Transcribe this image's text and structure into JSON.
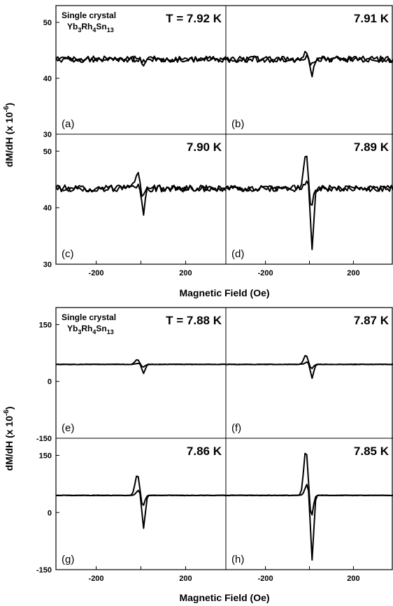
{
  "chart_data": [
    {
      "type": "line",
      "xlabel": "Magnetic Field (Oe)",
      "ylabel": "dM/dH (x 10",
      "ylabel_exponent": "-6",
      "ylabel_suffix": ")",
      "sample_label": {
        "line1": "Single crystal",
        "formula": [
          "Yb",
          "3",
          "Rh",
          "4",
          "Sn",
          "13"
        ]
      },
      "xlim": [
        -380,
        380
      ],
      "ylim": [
        30,
        53
      ],
      "xticks": [
        -200,
        0,
        200
      ],
      "xtick_labels": [
        "-200",
        "0",
        "200"
      ],
      "yticks": [
        30,
        40,
        50
      ],
      "ytick_labels": [
        "30",
        "40",
        "50"
      ],
      "grid": false,
      "panels": [
        {
          "letter": "(a)",
          "temperature": "T = 7.92 K",
          "baseline": 43.4,
          "noise": 0.55,
          "peak_pos": 0.4,
          "peak_neg": -0.8
        },
        {
          "letter": "(b)",
          "temperature": "7.91 K",
          "baseline": 43.4,
          "noise": 0.55,
          "peak_pos": 1.8,
          "peak_neg": -2.8
        },
        {
          "letter": "(c)",
          "temperature": "7.90 K",
          "baseline": 43.4,
          "noise": 0.6,
          "peak_pos": 2.8,
          "peak_neg": -4.4
        },
        {
          "letter": "(d)",
          "temperature": "7.89 K",
          "baseline": 43.4,
          "noise": 0.55,
          "peak_pos": 6.4,
          "peak_neg": -10.6
        }
      ]
    },
    {
      "type": "line",
      "xlabel": "Magnetic Field (Oe)",
      "ylabel": "dM/dH (x 10",
      "ylabel_exponent": "-6",
      "ylabel_suffix": ")",
      "sample_label": {
        "line1": "Single crystal",
        "formula": [
          "Yb",
          "3",
          "Rh",
          "4",
          "Sn",
          "13"
        ]
      },
      "xlim": [
        -380,
        380
      ],
      "ylim": [
        -150,
        195
      ],
      "xticks": [
        -200,
        0,
        200
      ],
      "xtick_labels": [
        "-200",
        "0",
        "200"
      ],
      "yticks": [
        -150,
        0,
        150
      ],
      "ytick_labels": [
        "-150",
        "0",
        "150"
      ],
      "grid": false,
      "panels": [
        {
          "letter": "(e)",
          "temperature": "T = 7.88 K",
          "baseline": 45,
          "noise": 0.6,
          "peak_pos": 13,
          "peak_neg": -24
        },
        {
          "letter": "(f)",
          "temperature": "7.87 K",
          "baseline": 45,
          "noise": 0.6,
          "peak_pos": 25,
          "peak_neg": -37
        },
        {
          "letter": "(g)",
          "temperature": "7.86 K",
          "baseline": 45,
          "noise": 0.6,
          "peak_pos": 55,
          "peak_neg": -87
        },
        {
          "letter": "(h)",
          "temperature": "7.85 K",
          "baseline": 45,
          "noise": 0.6,
          "peak_pos": 120,
          "peak_neg": -172
        }
      ]
    }
  ]
}
